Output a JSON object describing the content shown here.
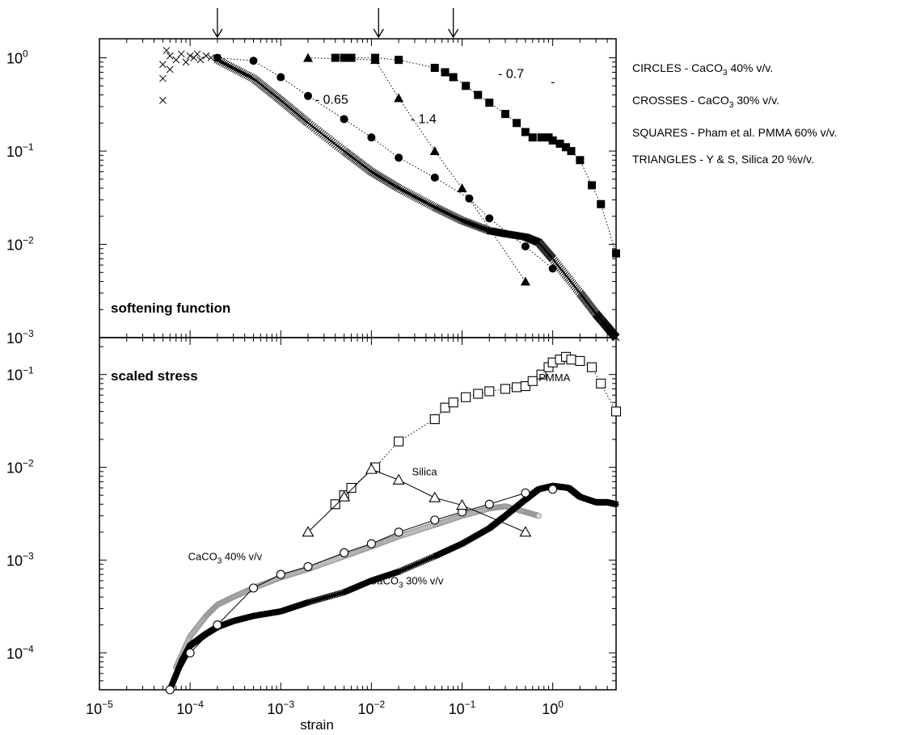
{
  "legend": {
    "entries": [
      {
        "shape": "CIRCLES",
        "dataset": "CaCO",
        "sub": "3",
        "rest": " 40% v/v."
      },
      {
        "shape": "CROSSES",
        "dataset": "CaCO",
        "sub": "3",
        "rest": " 30% v/v."
      },
      {
        "shape": "SQUARES",
        "dataset": "Pham et al. PMMA 60% v/v.",
        "sub": "",
        "rest": ""
      },
      {
        "shape": "TRIANGLES",
        "dataset": "Y & S, Silica 20 %v/v.",
        "sub": "",
        "rest": ""
      }
    ]
  },
  "chart_data": [
    {
      "type": "scatter",
      "title": "softening function",
      "xlabel": "",
      "ylabel": "",
      "xscale": "log",
      "yscale": "log",
      "xlim": [
        1e-05,
        5
      ],
      "ylim": [
        0.001,
        1.6
      ],
      "y_ticks": [
        {
          "base": "10",
          "exp": "0",
          "value": 1
        },
        {
          "base": "10",
          "exp": "−1",
          "value": 0.1
        },
        {
          "base": "10",
          "exp": "−2",
          "value": 0.01
        },
        {
          "base": "10",
          "exp": "−3",
          "value": 0.001
        }
      ],
      "arrows_at_strain": [
        0.0002,
        0.012,
        0.08
      ],
      "annotations": [
        {
          "text": "- 0.65",
          "x": 0.0024,
          "y": 0.32
        },
        {
          "text": "- 1.4",
          "x": 0.027,
          "y": 0.2
        },
        {
          "text": "- 0.7",
          "x": 0.25,
          "y": 0.61
        },
        {
          "text": "-",
          "x": 0.95,
          "y": 0.5
        }
      ],
      "series": [
        {
          "name": "CIRCLES",
          "marker": "filled-circle",
          "line": "dotted",
          "x": [
            0.0002,
            0.0005,
            0.001,
            0.002,
            0.005,
            0.01,
            0.02,
            0.05,
            0.12,
            0.2,
            0.5,
            1.0
          ],
          "y": [
            1.0,
            0.93,
            0.62,
            0.39,
            0.22,
            0.14,
            0.085,
            0.052,
            0.031,
            0.019,
            0.0095,
            0.0055
          ]
        },
        {
          "name": "CROSSES",
          "marker": "cross",
          "line": "dense",
          "scatter_x": [
            5e-05,
            5e-05,
            5e-05,
            5.5e-05,
            6e-05,
            6e-05,
            7e-05,
            8e-05,
            9e-05,
            0.0001,
            0.00011,
            0.00012,
            0.00013,
            0.00015,
            0.00017,
            0.0002
          ],
          "scatter_y": [
            0.35,
            0.6,
            0.85,
            1.2,
            1.05,
            0.75,
            0.95,
            1.1,
            0.9,
            1.05,
            1.0,
            1.1,
            0.95,
            1.05,
            1.0,
            1.0
          ],
          "x": [
            0.0002,
            0.0005,
            0.001,
            0.002,
            0.005,
            0.01,
            0.02,
            0.05,
            0.1,
            0.2,
            0.3,
            0.5,
            0.7,
            1.0,
            2.0,
            3.0,
            4.0,
            5.0
          ],
          "y": [
            0.95,
            0.6,
            0.35,
            0.2,
            0.1,
            0.06,
            0.04,
            0.025,
            0.018,
            0.014,
            0.013,
            0.012,
            0.0105,
            0.007,
            0.003,
            0.0018,
            0.0013,
            0.001
          ]
        },
        {
          "name": "SQUARES",
          "marker": "filled-square",
          "line": "dotted",
          "x": [
            0.004,
            0.005,
            0.006,
            0.011,
            0.02,
            0.05,
            0.065,
            0.08,
            0.11,
            0.15,
            0.2,
            0.3,
            0.4,
            0.5,
            0.6,
            0.75,
            0.9,
            1.0,
            1.2,
            1.4,
            1.6,
            2.0,
            2.7,
            3.4,
            5.0
          ],
          "y": [
            1.0,
            1.0,
            1.0,
            1.0,
            0.95,
            0.78,
            0.7,
            0.62,
            0.5,
            0.4,
            0.33,
            0.25,
            0.2,
            0.16,
            0.14,
            0.14,
            0.14,
            0.13,
            0.12,
            0.11,
            0.1,
            0.08,
            0.043,
            0.027,
            0.008
          ]
        },
        {
          "name": "TRIANGLES",
          "marker": "filled-triangle",
          "line": "dotted",
          "x": [
            0.002,
            0.011,
            0.02,
            0.05,
            0.1,
            0.5
          ],
          "y": [
            1.0,
            0.95,
            0.37,
            0.1,
            0.04,
            0.004
          ]
        }
      ]
    },
    {
      "type": "scatter",
      "title": "scaled stress",
      "xlabel": "strain",
      "ylabel": "",
      "xscale": "log",
      "yscale": "log",
      "xlim": [
        1e-05,
        5
      ],
      "ylim": [
        4e-05,
        0.25
      ],
      "x_ticks": [
        {
          "base": "10",
          "exp": "−5",
          "value": 1e-05
        },
        {
          "base": "10",
          "exp": "−4",
          "value": 0.0001
        },
        {
          "base": "10",
          "exp": "−3",
          "value": 0.001
        },
        {
          "base": "10",
          "exp": "−2",
          "value": 0.01
        },
        {
          "base": "10",
          "exp": "−1",
          "value": 0.1
        },
        {
          "base": "10",
          "exp": "0",
          "value": 1
        }
      ],
      "y_ticks": [
        {
          "base": "10",
          "exp": "−1",
          "value": 0.1
        },
        {
          "base": "10",
          "exp": "−2",
          "value": 0.01
        },
        {
          "base": "10",
          "exp": "−3",
          "value": 0.001
        },
        {
          "base": "10",
          "exp": "−4",
          "value": 0.0001
        }
      ],
      "annotations": [
        {
          "text": "PMMA",
          "x": 0.7,
          "y": 0.085
        },
        {
          "text": "Silica",
          "x": 0.028,
          "y": 0.0082
        },
        {
          "text": "CaCO",
          "sub": "3",
          "rest": " 40% v/v",
          "x": 9.5e-05,
          "y": 0.001
        },
        {
          "text": "CaCO",
          "sub": "3",
          "rest": " 30% v/v",
          "x": 0.0095,
          "y": 0.00055
        }
      ],
      "series": [
        {
          "name": "PMMA",
          "marker": "open-square",
          "line": "dotted",
          "x": [
            0.004,
            0.005,
            0.006,
            0.011,
            0.02,
            0.05,
            0.065,
            0.08,
            0.11,
            0.15,
            0.2,
            0.3,
            0.4,
            0.5,
            0.6,
            0.75,
            0.9,
            1.0,
            1.2,
            1.4,
            1.6,
            2.0,
            2.7,
            3.4,
            5.0
          ],
          "y": [
            0.004,
            0.005,
            0.006,
            0.01,
            0.019,
            0.033,
            0.044,
            0.05,
            0.057,
            0.062,
            0.066,
            0.07,
            0.073,
            0.075,
            0.085,
            0.1,
            0.12,
            0.135,
            0.145,
            0.155,
            0.145,
            0.14,
            0.12,
            0.08,
            0.04
          ]
        },
        {
          "name": "Silica",
          "marker": "open-triangle",
          "line": "solid",
          "x": [
            0.002,
            0.005,
            0.01,
            0.02,
            0.05,
            0.1,
            0.5
          ],
          "y": [
            0.002,
            0.0048,
            0.0095,
            0.0073,
            0.0047,
            0.0039,
            0.002
          ]
        },
        {
          "name": "CaCO3 40% v/v",
          "marker": "open-circle",
          "line": "solid",
          "x": [
            6e-05,
            0.0001,
            0.0002,
            0.0005,
            0.001,
            0.002,
            0.005,
            0.01,
            0.02,
            0.05,
            0.1,
            0.2,
            0.5,
            1.0
          ],
          "y": [
            4e-05,
            0.0001,
            0.0002,
            0.0005,
            0.0007,
            0.00085,
            0.0012,
            0.0015,
            0.002,
            0.0027,
            0.0033,
            0.004,
            0.0053,
            0.0058
          ]
        },
        {
          "name": "CaCO3 40% v/v (gray)",
          "marker": "gray-circle",
          "line": "dense",
          "x": [
            7e-05,
            0.0001,
            0.00015,
            0.0002,
            0.0003,
            0.0005,
            0.001,
            0.002,
            0.005,
            0.01,
            0.02,
            0.05,
            0.1,
            0.2,
            0.3,
            0.5,
            0.7
          ],
          "y": [
            7e-05,
            0.00015,
            0.00025,
            0.00033,
            0.0004,
            0.0005,
            0.00065,
            0.0008,
            0.0011,
            0.0014,
            0.0018,
            0.0024,
            0.003,
            0.0036,
            0.0038,
            0.0033,
            0.003
          ]
        },
        {
          "name": "CaCO3 30% v/v",
          "marker": "star",
          "line": "dense",
          "x": [
            6e-05,
            8e-05,
            0.0001,
            0.00015,
            0.0002,
            0.0003,
            0.0005,
            0.001,
            0.002,
            0.005,
            0.01,
            0.02,
            0.05,
            0.1,
            0.2,
            0.3,
            0.5,
            0.7,
            1.0,
            1.5,
            2.0,
            3.0,
            4.0,
            5.0
          ],
          "y": [
            4e-05,
            8e-05,
            0.00012,
            0.00016,
            0.00019,
            0.00022,
            0.00025,
            0.00028,
            0.00035,
            0.00045,
            0.0006,
            0.00075,
            0.0011,
            0.0015,
            0.0022,
            0.003,
            0.0045,
            0.0058,
            0.0063,
            0.006,
            0.0048,
            0.0042,
            0.0042,
            0.004
          ]
        }
      ]
    }
  ]
}
